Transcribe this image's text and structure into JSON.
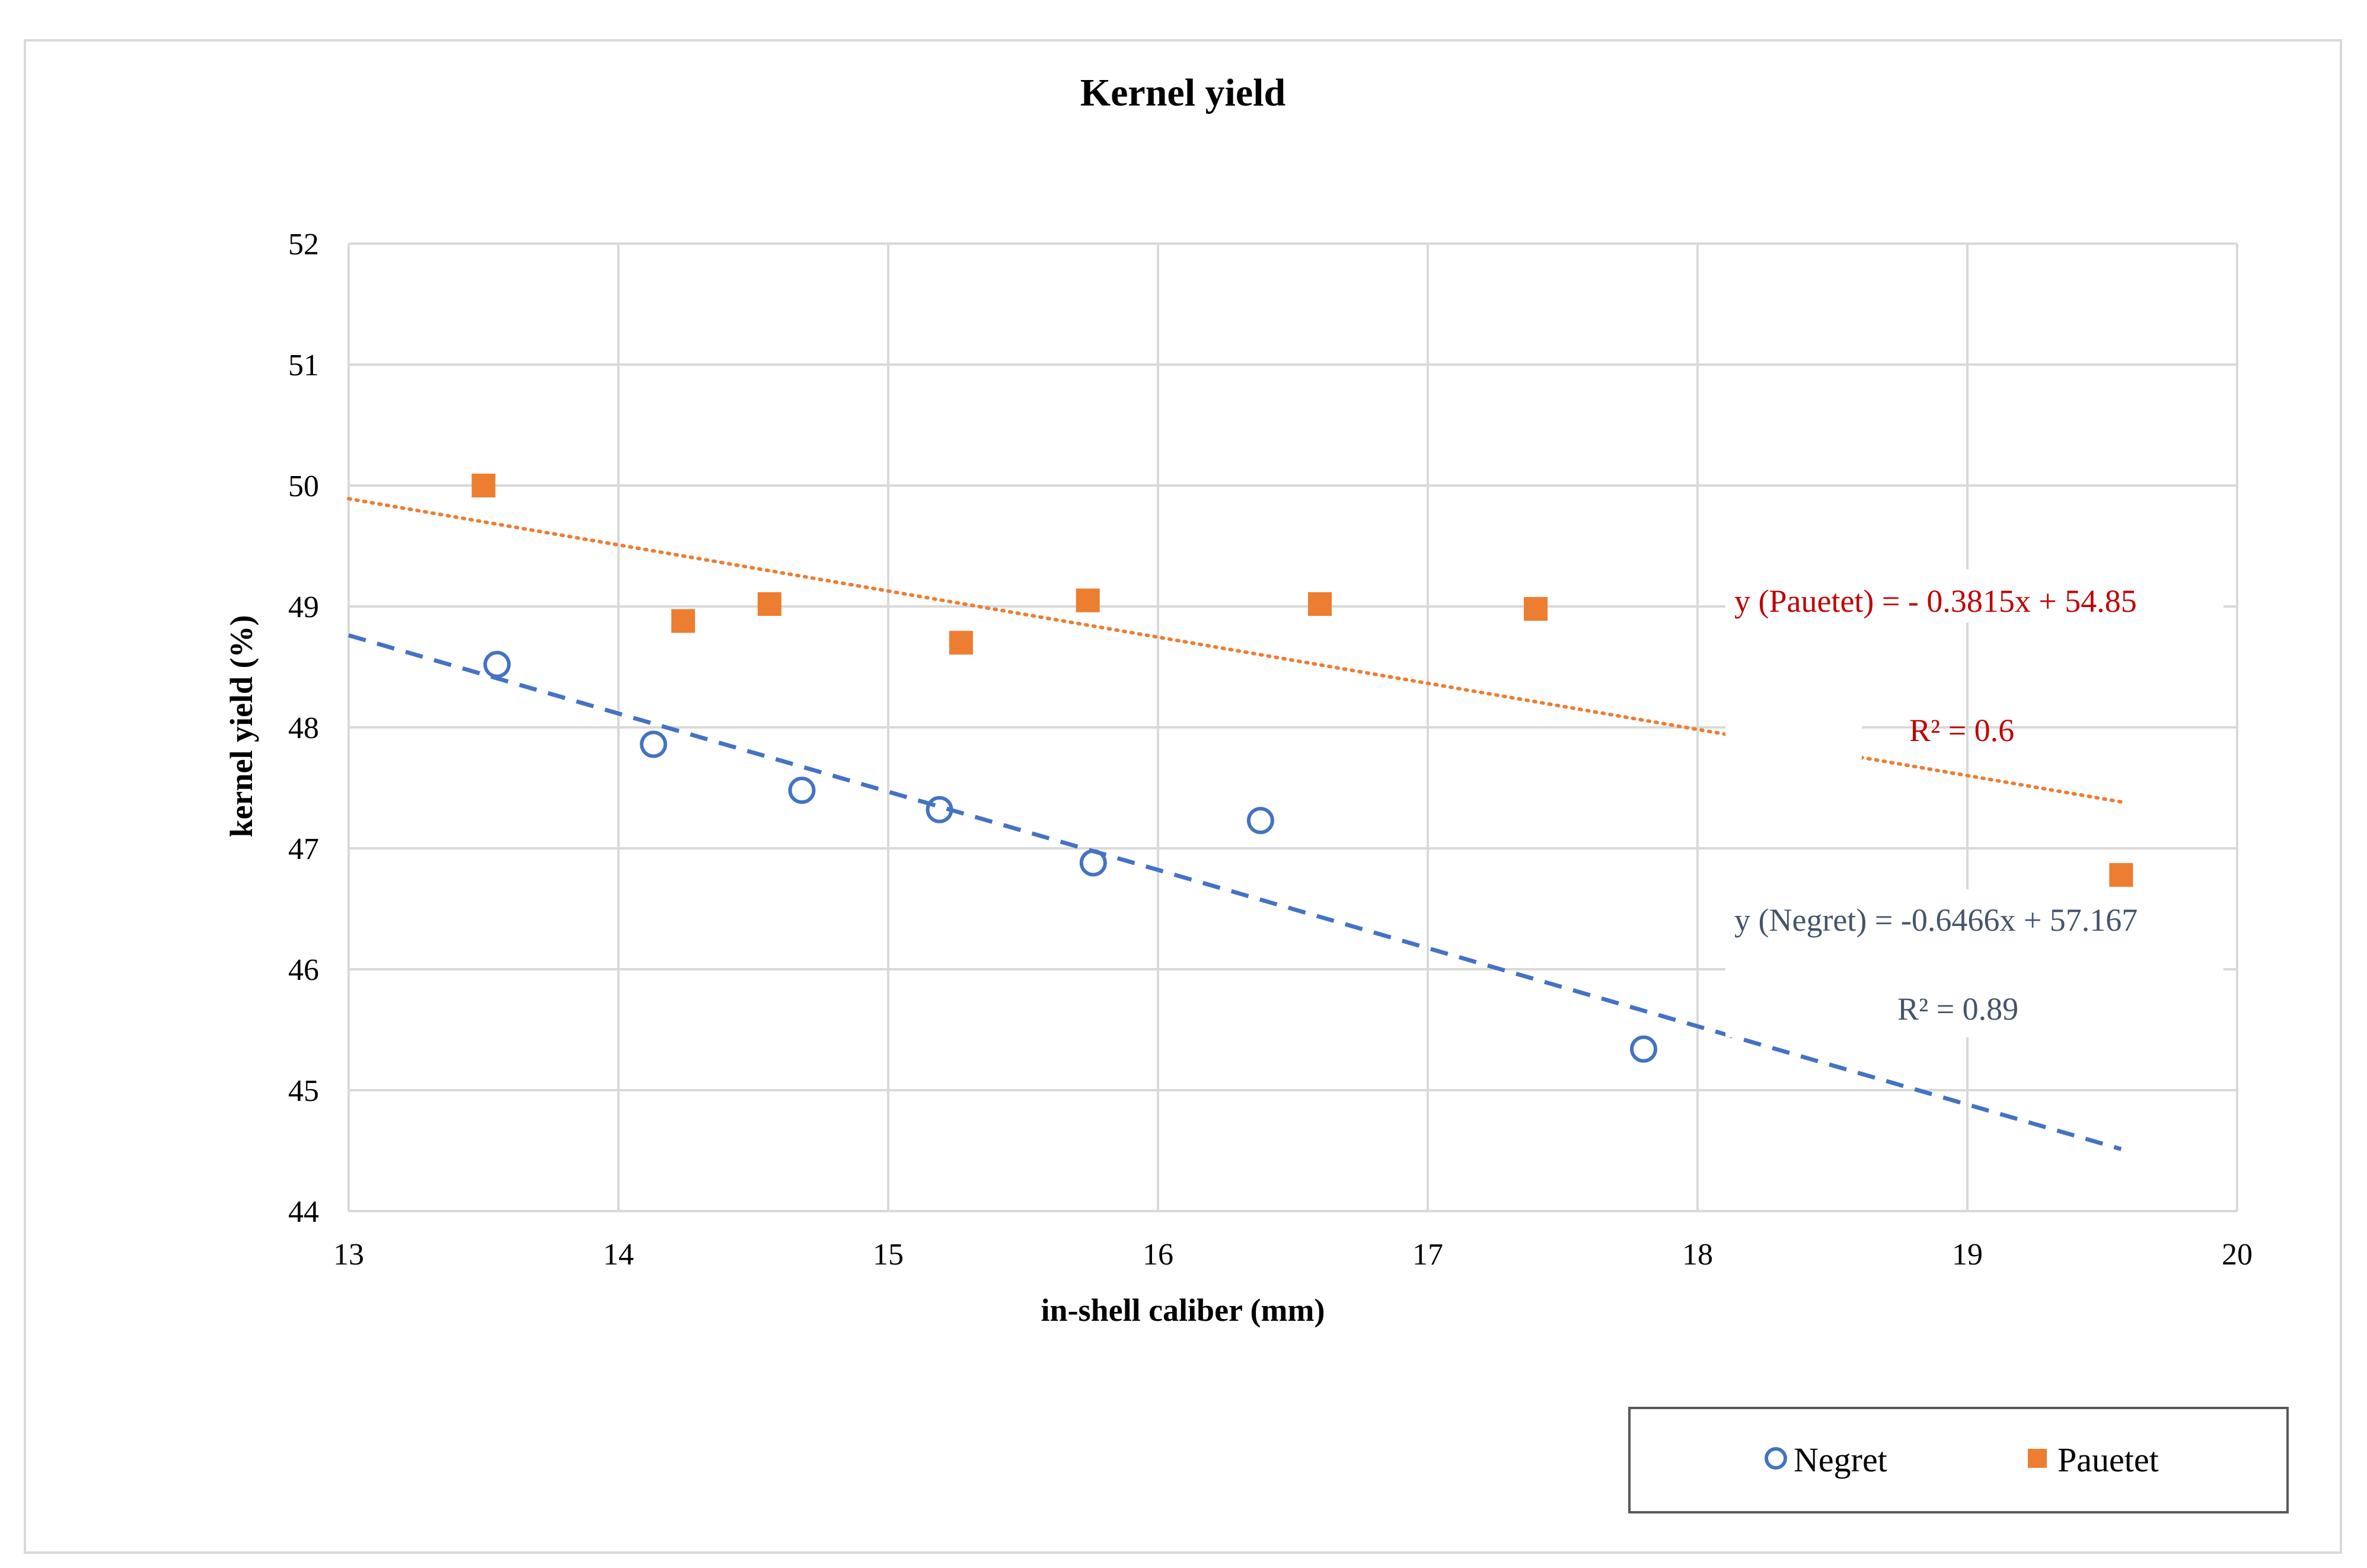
{
  "chart_data": {
    "type": "scatter",
    "title": "Kernel yield",
    "xlabel": "in-shell caliber (mm)",
    "ylabel": "kernel yield (%)",
    "xlim": [
      13,
      20
    ],
    "ylim": [
      44,
      52
    ],
    "xticks": [
      13,
      14,
      15,
      16,
      17,
      18,
      19,
      20
    ],
    "yticks": [
      44,
      45,
      46,
      47,
      48,
      49,
      50,
      51,
      52
    ],
    "grid": true,
    "legend_position": "bottom-right",
    "series": [
      {
        "name": "Negret",
        "marker": "open-circle",
        "color": "#4472c4",
        "x": [
          13.55,
          14.13,
          14.68,
          15.19,
          15.76,
          16.38,
          17.8
        ],
        "y": [
          48.52,
          47.86,
          47.48,
          47.32,
          46.88,
          47.23,
          45.34
        ],
        "trendline": {
          "style": "dashed",
          "slope": -0.6466,
          "intercept": 57.167,
          "x_range": [
            13,
            19.57
          ]
        }
      },
      {
        "name": "Pauetet",
        "marker": "filled-square",
        "color": "#ed7d31",
        "x": [
          13.5,
          14.24,
          14.56,
          15.27,
          15.74,
          16.6,
          17.4,
          19.57
        ],
        "y": [
          50.0,
          48.88,
          49.02,
          48.7,
          49.05,
          49.02,
          48.98,
          46.78
        ],
        "trendline": {
          "style": "dotted",
          "slope": -0.3815,
          "intercept": 54.85,
          "x_range": [
            13,
            19.57
          ]
        }
      }
    ],
    "annotations": [
      {
        "id": "pauetet-eq",
        "text": "y (Pauetet)  = - 0.3815x + 54.85",
        "color": "#c00000"
      },
      {
        "id": "pauetet-r2",
        "text": "R² = 0.6",
        "color": "#c00000"
      },
      {
        "id": "negret-eq",
        "text": "y (Negret) = -0.6466x + 57.167",
        "color": "#44546a"
      },
      {
        "id": "negret-r2",
        "text": "R² = 0.89",
        "color": "#44546a"
      }
    ]
  }
}
